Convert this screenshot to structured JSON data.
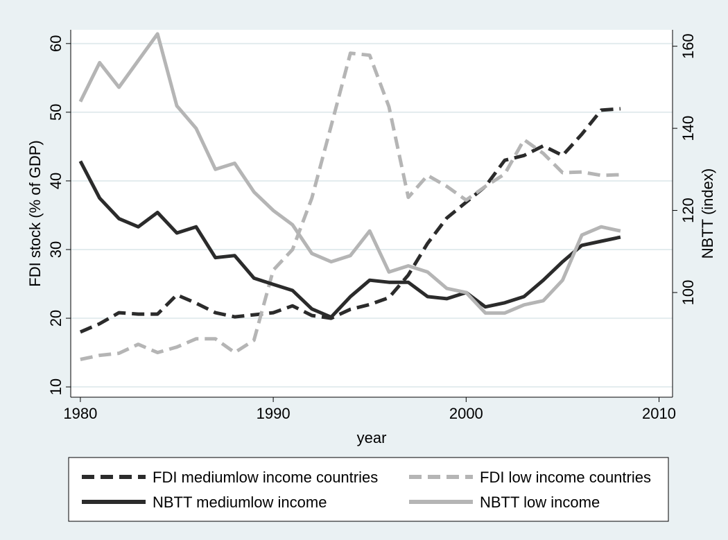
{
  "chart_data": {
    "type": "line",
    "title": "",
    "xlabel": "year",
    "ylabel_left": "FDI stock (% of GDP)",
    "ylabel_right": "NBTT (index)",
    "xlim": [
      1979.5,
      2010.7
    ],
    "ylim_left": [
      8.5,
      62
    ],
    "ylim_right": [
      74.5,
      164
    ],
    "xticks": [
      1980,
      1990,
      2000,
      2010
    ],
    "yticks_left": [
      10,
      20,
      30,
      40,
      50,
      60
    ],
    "yticks_right": [
      100,
      120,
      140,
      160
    ],
    "grid": true,
    "legend_position": "bottom",
    "series": [
      {
        "name": "FDI mediumlow income countries",
        "axis": "left",
        "color": "#2b2b2b",
        "dash": true,
        "x": [
          1980,
          1981,
          1982,
          1983,
          1984,
          1985,
          1986,
          1987,
          1988,
          1989,
          1990,
          1991,
          1992,
          1993,
          1994,
          1995,
          1996,
          1997,
          1998,
          1999,
          2000,
          2001,
          2002,
          2003,
          2004,
          2005,
          2006,
          2007,
          2008
        ],
        "values": [
          18,
          19.2,
          20.8,
          20.6,
          20.6,
          23.4,
          22.2,
          20.8,
          20.2,
          20.5,
          20.8,
          21.8,
          20.4,
          20,
          21.3,
          22,
          23,
          26.3,
          30.9,
          34.6,
          36.9,
          39.2,
          43,
          43.7,
          45.1,
          43.7,
          46.8,
          50.3,
          50.5
        ]
      },
      {
        "name": "FDI low income countries",
        "axis": "left",
        "color": "#b5b5b5",
        "dash": true,
        "x": [
          1980,
          1981,
          1982,
          1983,
          1984,
          1985,
          1986,
          1987,
          1988,
          1989,
          1990,
          1991,
          1992,
          1993,
          1994,
          1995,
          1996,
          1997,
          1998,
          1999,
          2000,
          2001,
          2002,
          2003,
          2004,
          2005,
          2006,
          2007,
          2008
        ],
        "values": [
          14,
          14.6,
          14.9,
          16.2,
          15,
          15.8,
          17,
          17,
          15,
          16.8,
          27,
          30,
          37.5,
          48,
          58.6,
          58.3,
          50.8,
          37.6,
          40.8,
          39.2,
          37.2,
          39.2,
          41,
          46,
          44,
          41.2,
          41.3,
          40.8,
          40.9
        ]
      },
      {
        "name": "NBTT mediumlow income",
        "axis": "right",
        "color": "#2b2b2b",
        "dash": false,
        "x": [
          1980,
          1981,
          1982,
          1983,
          1984,
          1985,
          1986,
          1987,
          1988,
          1989,
          1990,
          1991,
          1992,
          1993,
          1994,
          1995,
          1996,
          1997,
          1998,
          1999,
          2000,
          2001,
          2002,
          2003,
          2004,
          2005,
          2006,
          2007,
          2008
        ],
        "values": [
          132,
          123,
          118,
          116,
          119.5,
          114.5,
          116,
          108.5,
          109,
          103.5,
          102,
          100.5,
          96,
          94,
          99,
          103,
          102.5,
          102.5,
          99,
          98.5,
          100,
          96.5,
          97.5,
          99,
          103,
          107.5,
          111.5,
          112.5,
          113.5
        ]
      },
      {
        "name": "NBTT low income",
        "axis": "right",
        "color": "#b5b5b5",
        "dash": false,
        "x": [
          1980,
          1981,
          1982,
          1983,
          1984,
          1985,
          1986,
          1987,
          1988,
          1989,
          1990,
          1991,
          1992,
          1993,
          1994,
          1995,
          1996,
          1997,
          1998,
          1999,
          2000,
          2001,
          2002,
          2003,
          2004,
          2005,
          2006,
          2007,
          2008
        ],
        "values": [
          146.5,
          156,
          150,
          156.5,
          163,
          145.5,
          140,
          130,
          131.5,
          124.5,
          120,
          116.5,
          109.5,
          107.5,
          109,
          115,
          105,
          106.5,
          105,
          101,
          100,
          95,
          95,
          97,
          98,
          103,
          114,
          116,
          115
        ]
      }
    ]
  }
}
